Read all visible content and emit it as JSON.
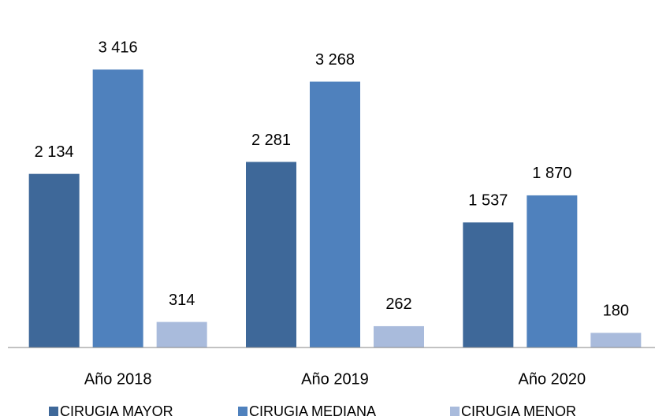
{
  "chart_data": {
    "type": "bar",
    "categories": [
      "Año 2018",
      "Año 2019",
      "Año 2020"
    ],
    "series": [
      {
        "name": "CIRUGIA MAYOR",
        "color": "#3e6899",
        "values": [
          2134,
          2281,
          1537
        ],
        "value_labels": [
          "2 134",
          "2 281",
          "1 537"
        ]
      },
      {
        "name": "CIRUGIA MEDIANA",
        "color": "#4f81bd",
        "values": [
          3416,
          3268,
          1870
        ],
        "value_labels": [
          "3 416",
          "3 268",
          "1 870"
        ]
      },
      {
        "name": "CIRUGIA MENOR",
        "color": "#a9bbdc",
        "values": [
          314,
          262,
          180
        ],
        "value_labels": [
          "314",
          "262",
          "180"
        ]
      }
    ],
    "ylim": [
      0,
      4000
    ],
    "legend": "bottom"
  }
}
